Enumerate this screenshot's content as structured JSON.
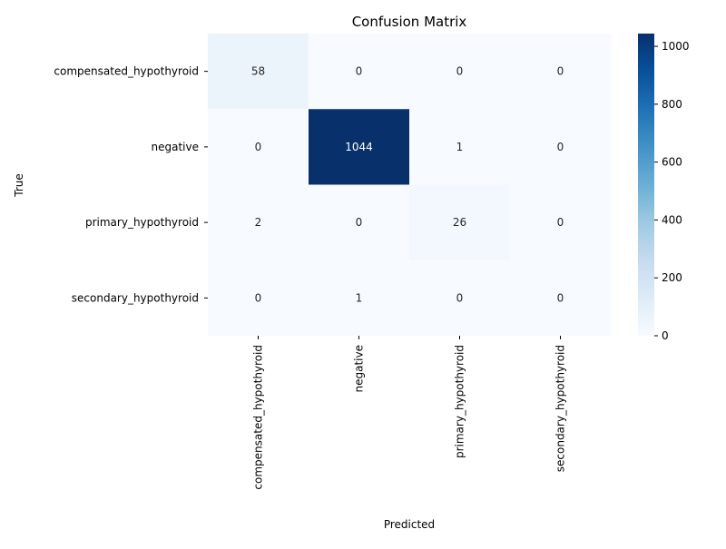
{
  "chart_data": {
    "type": "heatmap",
    "title": "Confusion Matrix",
    "xlabel": "Predicted",
    "ylabel": "True",
    "x_categories": [
      "compensated_hypothyroid",
      "negative",
      "primary_hypothyroid",
      "secondary_hypothyroid"
    ],
    "y_categories": [
      "compensated_hypothyroid",
      "negative",
      "primary_hypothyroid",
      "secondary_hypothyroid"
    ],
    "values": [
      [
        58,
        0,
        0,
        0
      ],
      [
        0,
        1044,
        1,
        0
      ],
      [
        2,
        0,
        26,
        0
      ],
      [
        0,
        1,
        0,
        0
      ]
    ],
    "colormap": "Blues",
    "vmin": 0,
    "vmax": 1044,
    "colorbar_ticks": [
      0,
      200,
      400,
      600,
      800,
      1000
    ],
    "colorbar_tick_labels": [
      "0",
      "200",
      "400",
      "600",
      "800",
      "1000"
    ],
    "annotations": true,
    "grid": false
  }
}
